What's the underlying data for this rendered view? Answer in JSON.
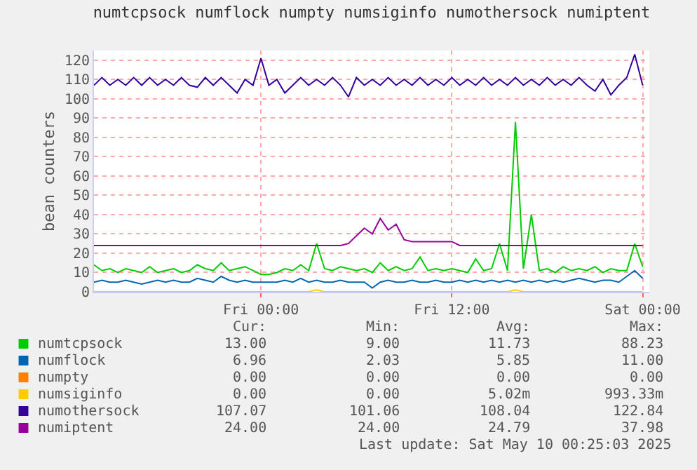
{
  "chart_data": {
    "type": "line",
    "title": "numtcpsock numflock numpty numsiginfo numothersock numiptent",
    "ylabel": "bean counters",
    "x": [
      "2025-05-08T13:30",
      "2025-05-08T14:00",
      "2025-05-08T14:30",
      "2025-05-08T15:00",
      "2025-05-08T15:30",
      "2025-05-08T16:00",
      "2025-05-08T16:30",
      "2025-05-08T17:00",
      "2025-05-08T17:30",
      "2025-05-08T18:00",
      "2025-05-08T18:30",
      "2025-05-08T19:00",
      "2025-05-08T19:30",
      "2025-05-08T20:00",
      "2025-05-08T20:30",
      "2025-05-08T21:00",
      "2025-05-08T21:30",
      "2025-05-08T22:00",
      "2025-05-08T22:30",
      "2025-05-08T23:00",
      "2025-05-08T23:30",
      "2025-05-09T00:00",
      "2025-05-09T00:30",
      "2025-05-09T01:00",
      "2025-05-09T01:30",
      "2025-05-09T02:00",
      "2025-05-09T02:30",
      "2025-05-09T03:00",
      "2025-05-09T03:30",
      "2025-05-09T04:00",
      "2025-05-09T04:30",
      "2025-05-09T05:00",
      "2025-05-09T05:30",
      "2025-05-09T06:00",
      "2025-05-09T06:30",
      "2025-05-09T07:00",
      "2025-05-09T07:30",
      "2025-05-09T08:00",
      "2025-05-09T08:30",
      "2025-05-09T09:00",
      "2025-05-09T09:30",
      "2025-05-09T10:00",
      "2025-05-09T10:30",
      "2025-05-09T11:00",
      "2025-05-09T11:30",
      "2025-05-09T12:00",
      "2025-05-09T12:30",
      "2025-05-09T13:00",
      "2025-05-09T13:30",
      "2025-05-09T14:00",
      "2025-05-09T14:30",
      "2025-05-09T15:00",
      "2025-05-09T15:30",
      "2025-05-09T16:00",
      "2025-05-09T16:30",
      "2025-05-09T17:00",
      "2025-05-09T17:30",
      "2025-05-09T18:00",
      "2025-05-09T18:30",
      "2025-05-09T19:00",
      "2025-05-09T19:30",
      "2025-05-09T20:00",
      "2025-05-09T20:30",
      "2025-05-09T21:00",
      "2025-05-09T21:30",
      "2025-05-09T22:00",
      "2025-05-09T22:30",
      "2025-05-09T23:00",
      "2025-05-09T23:30",
      "2025-05-10T00:00"
    ],
    "series": [
      {
        "name": "numtcpsock",
        "color": "#00cc00",
        "values": [
          14,
          11,
          12,
          10,
          12,
          11,
          10,
          13,
          10,
          11,
          12,
          10,
          11,
          14,
          12,
          11,
          15,
          11,
          12,
          13,
          11,
          9,
          9,
          10,
          12,
          11,
          14,
          11,
          25,
          12,
          11,
          13,
          12,
          11,
          12,
          10,
          15,
          11,
          13,
          11,
          12,
          18,
          11,
          12,
          11,
          12,
          11,
          10,
          17,
          11,
          12,
          25,
          11,
          88,
          12,
          40,
          11,
          12,
          10,
          13,
          11,
          12,
          11,
          13,
          10,
          12,
          11,
          11,
          25,
          13
        ]
      },
      {
        "name": "numflock",
        "color": "#0066b3",
        "values": [
          5,
          6,
          5,
          5,
          6,
          5,
          4,
          5,
          6,
          5,
          6,
          5,
          5,
          7,
          6,
          5,
          8,
          6,
          5,
          6,
          5,
          5,
          5,
          5,
          6,
          5,
          7,
          5,
          6,
          5,
          5,
          6,
          5,
          5,
          5,
          2,
          5,
          6,
          5,
          5,
          6,
          5,
          5,
          6,
          5,
          5,
          6,
          5,
          6,
          5,
          6,
          5,
          6,
          5,
          6,
          5,
          6,
          5,
          6,
          5,
          6,
          7,
          6,
          5,
          6,
          6,
          5,
          8,
          11,
          7
        ]
      },
      {
        "name": "numpty",
        "color": "#ff8000",
        "values": [
          null,
          null,
          null,
          null,
          null,
          null,
          null,
          null,
          null,
          null,
          null,
          null,
          null,
          null,
          null,
          null,
          null,
          null,
          null,
          null,
          null,
          null,
          null,
          null,
          null,
          null,
          null,
          null,
          null,
          null,
          null,
          null,
          null,
          null,
          null,
          null,
          null,
          null,
          null,
          null,
          null,
          null,
          null,
          null,
          null,
          null,
          null,
          null,
          null,
          null,
          null,
          null,
          null,
          null,
          null,
          null,
          null,
          null,
          null,
          null,
          null,
          null,
          null,
          null,
          null,
          null,
          null,
          null,
          null,
          null
        ]
      },
      {
        "name": "numsiginfo",
        "color": "#ffcc00",
        "values": [
          0,
          0,
          0,
          0,
          0,
          0,
          0,
          0,
          0,
          0,
          0,
          0,
          0,
          0,
          0,
          0,
          0,
          0,
          0,
          0,
          0,
          0,
          0,
          0,
          0,
          0,
          0,
          0,
          1,
          0,
          0,
          0,
          0,
          0,
          0,
          0,
          0,
          0,
          0,
          0,
          0,
          0,
          0,
          0,
          0,
          0,
          0,
          0,
          0,
          0,
          0,
          0,
          0,
          1,
          0,
          0,
          0,
          0,
          0,
          0,
          0,
          0,
          0,
          0,
          0,
          0,
          0,
          0,
          0,
          0
        ]
      },
      {
        "name": "numothersock",
        "color": "#330099",
        "values": [
          107,
          111,
          107,
          110,
          107,
          111,
          107,
          111,
          107,
          110,
          107,
          111,
          107,
          106,
          111,
          107,
          111,
          107,
          103,
          110,
          107,
          121,
          107,
          110,
          103,
          107,
          111,
          107,
          110,
          107,
          111,
          107,
          101,
          111,
          107,
          110,
          107,
          111,
          107,
          110,
          107,
          111,
          107,
          110,
          107,
          111,
          107,
          110,
          107,
          111,
          107,
          110,
          107,
          111,
          107,
          110,
          107,
          111,
          107,
          110,
          107,
          111,
          107,
          104,
          110,
          102,
          107,
          111,
          123,
          107
        ]
      },
      {
        "name": "numiptent",
        "color": "#990099",
        "values": [
          24,
          24,
          24,
          24,
          24,
          24,
          24,
          24,
          24,
          24,
          24,
          24,
          24,
          24,
          24,
          24,
          24,
          24,
          24,
          24,
          24,
          24,
          24,
          24,
          24,
          24,
          24,
          24,
          24,
          24,
          24,
          24,
          25,
          29,
          33,
          30,
          38,
          32,
          35,
          27,
          26,
          26,
          26,
          26,
          26,
          26,
          24,
          24,
          24,
          24,
          24,
          24,
          24,
          24,
          24,
          24,
          24,
          24,
          24,
          24,
          24,
          24,
          24,
          24,
          24,
          24,
          24,
          24,
          24,
          24
        ]
      }
    ],
    "xlim": [
      "2025-05-08T13:30",
      "2025-05-10T00:25"
    ],
    "xticks": [
      {
        "value": "2025-05-09T00:00",
        "label": "Fri 00:00"
      },
      {
        "value": "2025-05-09T12:00",
        "label": "Fri 12:00"
      },
      {
        "value": "2025-05-10T00:00",
        "label": "Sat 00:00"
      }
    ],
    "ylim": [
      0,
      125
    ],
    "yticks": [
      0,
      10,
      20,
      30,
      40,
      50,
      60,
      70,
      80,
      90,
      100,
      110,
      120
    ],
    "grid": true,
    "legend": "bottom left",
    "line_style": "solid",
    "annotations": [
      "Cur:",
      "Min:",
      "Avg:",
      "Max:",
      "13.00",
      "9.00",
      "11.73",
      "88.23",
      "6.96",
      "2.03",
      "5.85",
      "11.00",
      "0.00",
      "0.00",
      "0.00",
      "0.00",
      "0.00",
      "0.00",
      "5.02m",
      "993.33m",
      "107.07",
      "101.06",
      "108.04",
      "122.84",
      "24.00",
      "24.00",
      "24.79",
      "37.98",
      "Last update: Sat May 10 00:25:03 2025"
    ]
  }
}
